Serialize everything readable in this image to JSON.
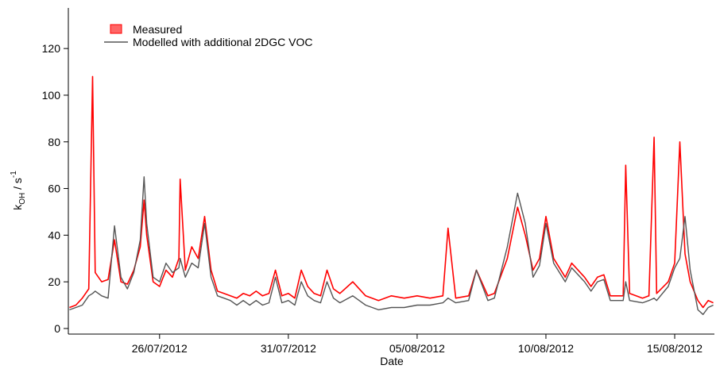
{
  "chart_data": {
    "type": "line",
    "y_label": {
      "base": "k",
      "sub": "OH",
      "mid": " / s",
      "sup": "-1"
    },
    "x_label": "Date",
    "x": [
      "2012-07-22T12:00",
      "2012-07-22T18:00",
      "2012-07-23T00:00",
      "2012-07-23T06:00",
      "2012-07-23T09:36",
      "2012-07-23T12:00",
      "2012-07-23T18:00",
      "2012-07-24T00:00",
      "2012-07-24T06:00",
      "2012-07-24T12:00",
      "2012-07-24T18:00",
      "2012-07-25T00:00",
      "2012-07-25T06:00",
      "2012-07-25T09:36",
      "2012-07-25T12:00",
      "2012-07-25T18:00",
      "2012-07-26T00:00",
      "2012-07-26T06:00",
      "2012-07-26T12:00",
      "2012-07-26T18:00",
      "2012-07-26T19:12",
      "2012-07-27T00:00",
      "2012-07-27T06:00",
      "2012-07-27T12:00",
      "2012-07-27T18:00",
      "2012-07-28T00:00",
      "2012-07-28T06:00",
      "2012-07-28T12:00",
      "2012-07-28T18:00",
      "2012-07-29T00:00",
      "2012-07-29T06:00",
      "2012-07-29T12:00",
      "2012-07-29T18:00",
      "2012-07-30T00:00",
      "2012-07-30T06:00",
      "2012-07-30T12:00",
      "2012-07-30T18:00",
      "2012-07-31T00:00",
      "2012-07-31T06:00",
      "2012-07-31T12:00",
      "2012-07-31T18:00",
      "2012-08-01T00:00",
      "2012-08-01T06:00",
      "2012-08-01T12:00",
      "2012-08-01T18:00",
      "2012-08-02T00:00",
      "2012-08-02T12:00",
      "2012-08-03T00:00",
      "2012-08-03T12:00",
      "2012-08-04T00:00",
      "2012-08-04T12:00",
      "2012-08-05T00:00",
      "2012-08-05T12:00",
      "2012-08-06T00:00",
      "2012-08-06T04:48",
      "2012-08-06T12:00",
      "2012-08-07T00:00",
      "2012-08-07T07:12",
      "2012-08-07T18:00",
      "2012-08-08T00:00",
      "2012-08-08T12:00",
      "2012-08-08T21:36",
      "2012-08-09T04:48",
      "2012-08-09T12:00",
      "2012-08-09T18:00",
      "2012-08-10T00:00",
      "2012-08-10T07:12",
      "2012-08-10T18:00",
      "2012-08-11T00:00",
      "2012-08-11T12:00",
      "2012-08-11T18:00",
      "2012-08-12T00:00",
      "2012-08-12T06:00",
      "2012-08-12T12:00",
      "2012-08-13T00:00",
      "2012-08-13T02:24",
      "2012-08-13T06:00",
      "2012-08-13T18:00",
      "2012-08-14T00:00",
      "2012-08-14T04:48",
      "2012-08-14T07:12",
      "2012-08-14T18:00",
      "2012-08-15T00:00",
      "2012-08-15T04:48",
      "2012-08-15T09:36",
      "2012-08-15T14:24",
      "2012-08-15T21:36",
      "2012-08-16T02:24",
      "2012-08-16T07:12",
      "2012-08-16T12:00"
    ],
    "series": [
      {
        "name": "Measured",
        "color": "#ff0000",
        "values": [
          9,
          10,
          13,
          17,
          108,
          24,
          20,
          21,
          38,
          20,
          19,
          25,
          35,
          55,
          40,
          20,
          18,
          25,
          22,
          30,
          64,
          25,
          35,
          30,
          48,
          25,
          16,
          15,
          14,
          13,
          15,
          14,
          16,
          14,
          15,
          25,
          14,
          15,
          13,
          25,
          18,
          15,
          14,
          25,
          17,
          15,
          20,
          14,
          12,
          14,
          13,
          14,
          13,
          14,
          43,
          13,
          14,
          25,
          14,
          15,
          30,
          52,
          40,
          25,
          30,
          48,
          30,
          22,
          28,
          22,
          18,
          22,
          23,
          14,
          14,
          70,
          15,
          13,
          14,
          82,
          15,
          20,
          28,
          80,
          32,
          20,
          12,
          9,
          12,
          11
        ]
      },
      {
        "name": "Modelled with additional 2DGC VOC",
        "color": "#555555",
        "values": [
          8,
          9,
          10,
          14,
          15,
          16,
          14,
          13,
          44,
          22,
          17,
          24,
          38,
          65,
          45,
          22,
          20,
          28,
          24,
          26,
          30,
          22,
          28,
          26,
          45,
          22,
          14,
          13,
          12,
          10,
          12,
          10,
          12,
          10,
          11,
          22,
          11,
          12,
          10,
          20,
          14,
          12,
          11,
          20,
          13,
          11,
          14,
          10,
          8,
          9,
          9,
          10,
          10,
          11,
          13,
          11,
          12,
          25,
          12,
          13,
          35,
          58,
          45,
          22,
          27,
          45,
          28,
          20,
          26,
          20,
          16,
          20,
          21,
          12,
          12,
          20,
          12,
          11,
          12,
          13,
          12,
          18,
          26,
          30,
          48,
          25,
          8,
          6,
          9,
          10
        ]
      }
    ],
    "xlim": [
      "2012-07-22T11:00",
      "2012-08-16T13:00"
    ],
    "xticks": [
      {
        "value": "2012-07-26T00:00",
        "label": "26/07/2012"
      },
      {
        "value": "2012-07-31T00:00",
        "label": "31/07/2012"
      },
      {
        "value": "2012-08-05T00:00",
        "label": "05/08/2012"
      },
      {
        "value": "2012-08-10T00:00",
        "label": "10/08/2012"
      },
      {
        "value": "2012-08-15T00:00",
        "label": "15/08/2012"
      }
    ],
    "ylim": [
      -2.4,
      137.4
    ],
    "yticks": [
      0,
      20,
      40,
      60,
      80,
      100,
      120
    ]
  }
}
